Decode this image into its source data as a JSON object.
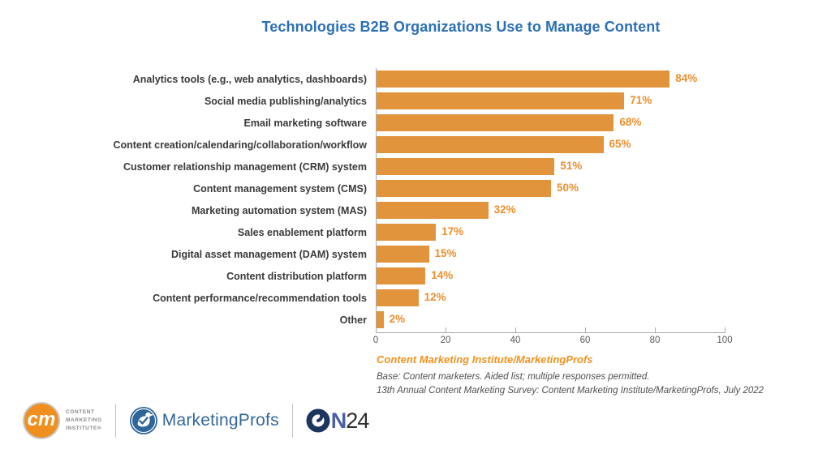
{
  "title": "Technologies B2B Organizations Use to Manage Content",
  "chart_data": {
    "type": "bar",
    "orientation": "horizontal",
    "title": "Technologies B2B Organizations Use to Manage Content",
    "categories": [
      "Analytics tools (e.g., web analytics, dashboards)",
      "Social media publishing/analytics",
      "Email marketing software",
      "Content creation/calendaring/collaboration/workflow",
      "Customer relationship management (CRM) system",
      "Content management system (CMS)",
      "Marketing automation system (MAS)",
      "Sales enablement platform",
      "Digital asset management (DAM) system",
      "Content distribution platform",
      "Content performance/recommendation tools",
      "Other"
    ],
    "values": [
      84,
      71,
      68,
      65,
      51,
      50,
      32,
      17,
      15,
      14,
      12,
      2
    ],
    "value_suffix": "%",
    "xlim": [
      0,
      100
    ],
    "x_ticks": [
      0,
      20,
      40,
      60,
      80,
      100
    ],
    "grid": false,
    "legend": false,
    "bar_color": "#E2943C",
    "value_label_color": "#ED8E2E"
  },
  "source": {
    "attribution": "Content Marketing Institute/MarketingProfs",
    "base_note": "Base: Content marketers. Aided list; multiple responses permitted.",
    "survey_note": "13th Annual Content Marketing Survey: Content Marketing Institute/MarketingProfs, July 2022"
  },
  "footer": {
    "cmi": {
      "monogram": "cm",
      "line1": "CONTENT",
      "line2": "MARKETING",
      "line3": "INSTITUTE®"
    },
    "marketingprofs_label": "MarketingProfs",
    "on24": {
      "n": "N",
      "number": "24"
    }
  },
  "colors": {
    "title_blue": "#2B6FB7",
    "bar_orange": "#E2943C",
    "value_orange": "#ED8E2E",
    "source_orange": "#F0921E",
    "axis_gray": "#ABABAB"
  }
}
